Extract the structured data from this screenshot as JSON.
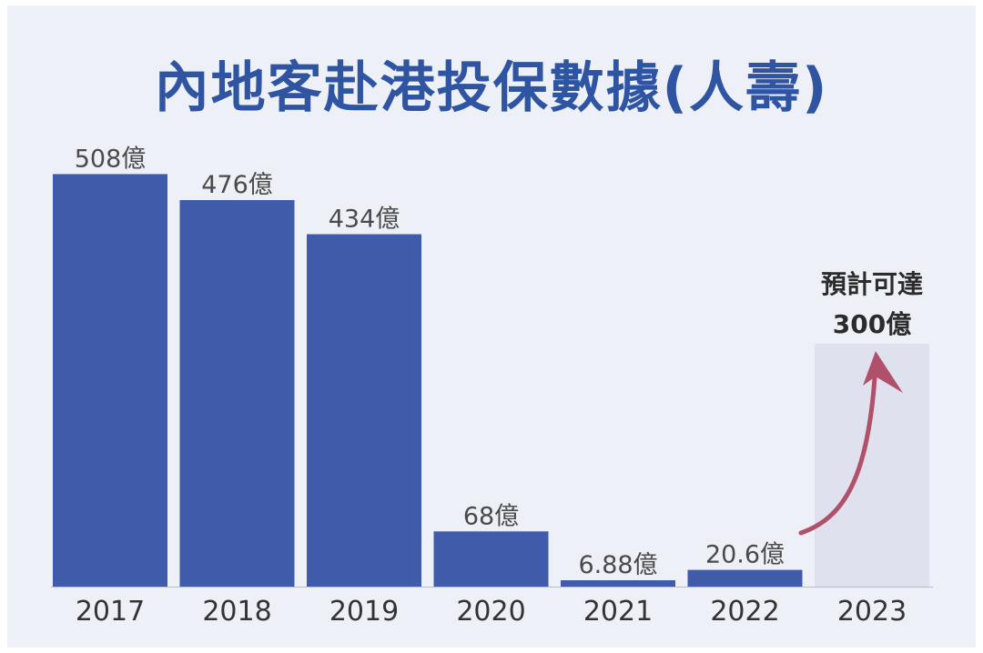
{
  "chart_data": {
    "type": "bar",
    "title": "內地客赴港投保數據(人壽)",
    "categories": [
      "2017",
      "2018",
      "2019",
      "2020",
      "2021",
      "2022",
      "2023"
    ],
    "values": [
      508,
      476,
      434,
      68,
      6.88,
      20.6,
      null
    ],
    "value_labels": [
      "508億",
      "476億",
      "434億",
      "68億",
      "6.88億",
      "20.6億",
      ""
    ],
    "unit": "億",
    "forecast": {
      "category": "2023",
      "value": 300,
      "label_line1": "預計可達",
      "label_line2": "300億"
    },
    "ylim": [
      0,
      560
    ],
    "grid": false,
    "legend": "none",
    "colors": {
      "bar": "#3f5ba9",
      "forecast_area": "#dfe2ee",
      "arrow": "#b0506a",
      "title": "#2f55a2",
      "background": "#eef0f7"
    }
  }
}
